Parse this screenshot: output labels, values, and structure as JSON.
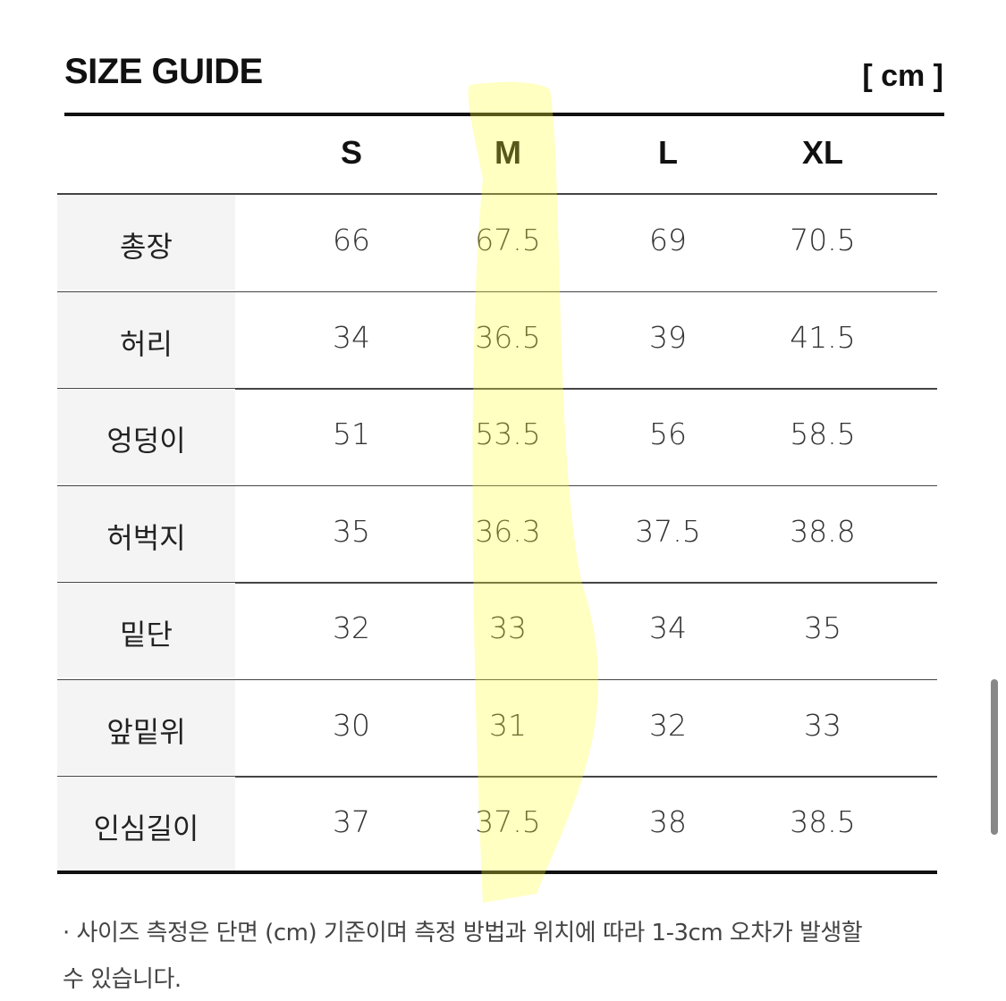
{
  "header": {
    "title": "SIZE GUIDE",
    "unit": "[ cm ]"
  },
  "table": {
    "columns": [
      "S",
      "M",
      "L",
      "XL"
    ],
    "rows": [
      {
        "label": "총장",
        "values": [
          66,
          67.5,
          69,
          70.5
        ]
      },
      {
        "label": "허리",
        "values": [
          34,
          36.5,
          39,
          41.5
        ]
      },
      {
        "label": "엉덩이",
        "values": [
          51,
          53.5,
          56,
          58.5
        ]
      },
      {
        "label": "허벅지",
        "values": [
          35,
          36.3,
          37.5,
          38.8
        ]
      },
      {
        "label": "밑단",
        "values": [
          32,
          33,
          34,
          35
        ]
      },
      {
        "label": "앞밑위",
        "values": [
          30,
          31,
          32,
          33
        ]
      },
      {
        "label": "인심길이",
        "values": [
          37,
          37.5,
          38,
          38.5
        ]
      }
    ]
  },
  "note": "· 사이즈 측정은 단면 (cm) 기준이며 측정 방법과 위치에 따라 1-3cm 오차가 발생할 수 있습니다."
}
